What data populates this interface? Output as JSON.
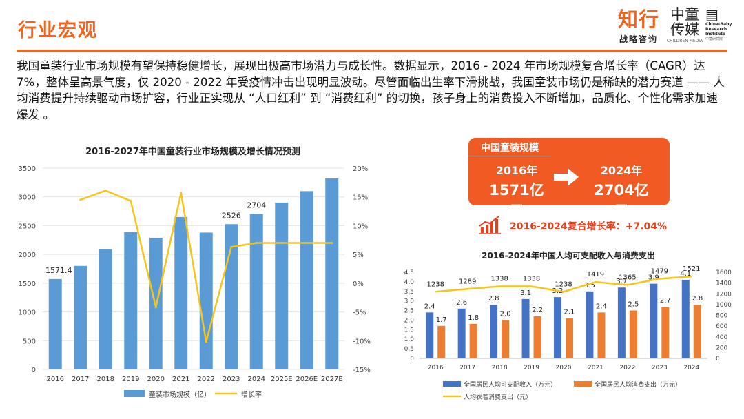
{
  "header": {
    "title": "行业宏观",
    "logo_main": "知行",
    "logo_sub": "战略咨询",
    "logo2_line1": "中童",
    "logo2_line2": "传媒",
    "logo2_en": "CHILDREN MEDIA",
    "logo3_line1": "China-Baby",
    "logo3_line2": "Research",
    "logo3_line3": "Institute",
    "logo3_cn": "中童研究院"
  },
  "intro": "我国童装行业市场规模有望保持稳健增长，展现出极高市场潜力与成长性。数据显示，2016 - 2024 年市场规模复合增长率（CAGR）达 7%，整体呈高景气度，仅 2020 - 2022 年受疫情冲击出现明显波动。尽管面临出生率下滑挑战，我国童装市场仍是稀缺的潜力赛道 —— 人均消费提升持续驱动市场扩容，行业正实现从 “人口红利” 到 “消费红利” 的切换，孩子身上的消费投入不断增加，品质化、个性化需求加速爆发 。",
  "summary_card": {
    "title": "中国童装规模",
    "from_year": "2016年",
    "from_value": "1571亿元",
    "to_year": "2024年",
    "to_value": "2704亿元",
    "cagr_text": "2016-2024复合增长率：+7.04%"
  },
  "colors": {
    "accent": "#f0641e",
    "bar_blue": "#5b9bd5",
    "line_yellow": "#f5c518",
    "bar_blue2": "#4472c4",
    "bar_orange": "#ed7d31"
  },
  "chart_data": [
    {
      "type": "bar",
      "title": "2016-2027年中国童装行业市场规模及增长情况预测",
      "categories": [
        "2016",
        "2017",
        "2018",
        "2019",
        "2020",
        "2021",
        "2022",
        "2023",
        "2024",
        "2025E",
        "2026E",
        "2027E"
      ],
      "series": [
        {
          "name": "童装市场规模（亿）",
          "type": "bar",
          "axis": "left",
          "values": [
            1571.4,
            1800,
            2090,
            2390,
            2290,
            2650,
            2380,
            2526,
            2704,
            2900,
            3100,
            3320
          ]
        },
        {
          "name": "增长率",
          "type": "line",
          "axis": "right",
          "values": [
            null,
            14.5,
            16.1,
            14.3,
            -4.2,
            15.7,
            -10.2,
            6.3,
            7.0,
            7.0,
            7.0,
            7.0
          ]
        }
      ],
      "data_labels": {
        "0": "1571.4",
        "7": "2526",
        "8": "2704"
      },
      "ylim_left": [
        0,
        3500
      ],
      "left_ticks": [
        "0",
        "500",
        "1000",
        "1500",
        "2000",
        "2500",
        "3000",
        "3500"
      ],
      "ylim_right": [
        -15,
        20
      ],
      "right_ticks": [
        "-15%",
        "-10%",
        "-5%",
        "0%",
        "5%",
        "10%",
        "15%",
        "20%"
      ],
      "legend": [
        "童装市场规模（亿）",
        "增长率"
      ],
      "legend_position": "bottom"
    },
    {
      "type": "bar",
      "title": "2016-2024年中国人均可支配收入与消费支出",
      "categories": [
        "2016",
        "2017",
        "2018",
        "2019",
        "2020",
        "2021",
        "2022",
        "2023",
        "2024"
      ],
      "series": [
        {
          "name": "全国居民人均可支配收入（万元）",
          "type": "bar",
          "axis": "left",
          "values": [
            2.4,
            2.6,
            2.8,
            3.1,
            3.2,
            3.5,
            3.7,
            3.9,
            4.1
          ]
        },
        {
          "name": "全国居民人均消费支出（万元）",
          "type": "bar",
          "axis": "left",
          "values": [
            1.7,
            1.8,
            2.0,
            2.2,
            2.1,
            2.4,
            2.5,
            2.7,
            2.8
          ]
        },
        {
          "name": "人均衣着消费支出（元）",
          "type": "line",
          "axis": "right",
          "values": [
            1238,
            1289,
            1338,
            1338,
            1238,
            1419,
            1365,
            1479,
            1521
          ]
        }
      ],
      "ylim_left": [
        0,
        4.5
      ],
      "left_ticks": [
        "0",
        "0.5",
        "1.0",
        "1.5",
        "2.0",
        "2.5",
        "3.0",
        "3.5",
        "4.0",
        "4.5"
      ],
      "ylim_right": [
        0,
        1600
      ],
      "right_ticks": [
        "0",
        "200",
        "400",
        "600",
        "800",
        "1000",
        "1200",
        "1400",
        "1600"
      ],
      "legend": [
        "全国居民人均可支配收入（万元）",
        "全国居民人均消费支出（万元）",
        "人均衣着消费支出（元）"
      ],
      "legend_position": "bottom"
    }
  ]
}
